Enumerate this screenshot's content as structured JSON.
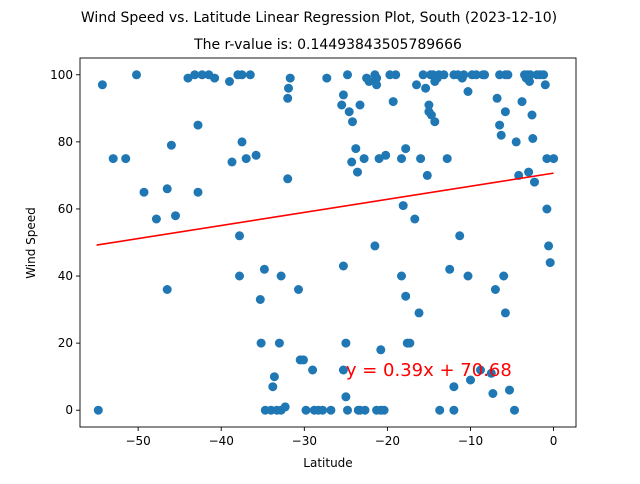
{
  "chart_data": {
    "type": "scatter",
    "title": "Wind Speed vs. Latitude Linear Regression Plot, South (2023-12-10)",
    "subtitle": "The r-value is: 0.14493843505789666",
    "xlabel": "Latitude",
    "ylabel": "Wind Speed",
    "xlim": [
      -57,
      2.7
    ],
    "ylim": [
      -5,
      105
    ],
    "xticks": [
      -50,
      -40,
      -30,
      -20,
      -10,
      0
    ],
    "yticks": [
      0,
      20,
      40,
      60,
      80,
      100
    ],
    "grid": false,
    "point_color": "#1f77b4",
    "line_color": "#ff0000",
    "annotation": {
      "text": "y = 0.39x + 70.68",
      "x": -25,
      "y": 12
    },
    "regression": {
      "slope": 0.39,
      "intercept": 70.68,
      "x_range": [
        -55,
        0
      ]
    },
    "points": [
      [
        -54.8,
        0
      ],
      [
        -54.3,
        97
      ],
      [
        -53,
        75
      ],
      [
        -51.5,
        75
      ],
      [
        -50.2,
        100
      ],
      [
        -49.3,
        65
      ],
      [
        -47.8,
        57
      ],
      [
        -46.5,
        66
      ],
      [
        -46.5,
        36
      ],
      [
        -46,
        79
      ],
      [
        -45.5,
        58
      ],
      [
        -44,
        99
      ],
      [
        -43.2,
        100
      ],
      [
        -42.8,
        65
      ],
      [
        -42.8,
        85
      ],
      [
        -42.3,
        100
      ],
      [
        -41.5,
        100
      ],
      [
        -40.8,
        99
      ],
      [
        -39,
        98
      ],
      [
        -38.7,
        74
      ],
      [
        -38,
        100
      ],
      [
        -37.8,
        52
      ],
      [
        -37.5,
        80
      ],
      [
        -37.8,
        40
      ],
      [
        -37.5,
        100
      ],
      [
        -37,
        75
      ],
      [
        -36.5,
        100
      ],
      [
        -35.8,
        76
      ],
      [
        -35.3,
        33
      ],
      [
        -35.2,
        20
      ],
      [
        -34.8,
        42
      ],
      [
        -34.7,
        0
      ],
      [
        -34,
        0
      ],
      [
        -33.8,
        7
      ],
      [
        -33.6,
        10
      ],
      [
        -33.3,
        0
      ],
      [
        -33,
        20
      ],
      [
        -32.8,
        0
      ],
      [
        -32.8,
        40
      ],
      [
        -32.3,
        1
      ],
      [
        -32,
        69
      ],
      [
        -32,
        93
      ],
      [
        -31.9,
        96
      ],
      [
        -31.7,
        99
      ],
      [
        -30.7,
        36
      ],
      [
        -30.5,
        15
      ],
      [
        -30.1,
        15
      ],
      [
        -29.8,
        0
      ],
      [
        -29,
        12
      ],
      [
        -28.8,
        0
      ],
      [
        -28.3,
        0
      ],
      [
        -27.8,
        0
      ],
      [
        -27.3,
        99
      ],
      [
        -26.8,
        0
      ],
      [
        -25.5,
        91
      ],
      [
        -25.3,
        12
      ],
      [
        -25.3,
        43
      ],
      [
        -25.3,
        94
      ],
      [
        -25,
        4
      ],
      [
        -25,
        20
      ],
      [
        -24.8,
        100
      ],
      [
        -24.8,
        0
      ],
      [
        -24.6,
        89
      ],
      [
        -24.3,
        74
      ],
      [
        -24.2,
        86
      ],
      [
        -23.8,
        78
      ],
      [
        -23.6,
        71
      ],
      [
        -23.5,
        0
      ],
      [
        -23.3,
        91
      ],
      [
        -23.3,
        0
      ],
      [
        -22.8,
        75
      ],
      [
        -22.7,
        0
      ],
      [
        -22.5,
        99
      ],
      [
        -22.2,
        98
      ],
      [
        -21.5,
        100
      ],
      [
        -21.5,
        49
      ],
      [
        -21.3,
        97
      ],
      [
        -21.3,
        99
      ],
      [
        -21.3,
        0
      ],
      [
        -21,
        75
      ],
      [
        -20.8,
        18
      ],
      [
        -20.8,
        0
      ],
      [
        -20.4,
        0
      ],
      [
        -20.2,
        76
      ],
      [
        -19.7,
        100
      ],
      [
        -19.3,
        92
      ],
      [
        -19,
        100
      ],
      [
        -18.3,
        75
      ],
      [
        -18.3,
        40
      ],
      [
        -18.1,
        61
      ],
      [
        -17.8,
        34
      ],
      [
        -17.8,
        78
      ],
      [
        -17.6,
        20
      ],
      [
        -17.3,
        20
      ],
      [
        -16.7,
        57
      ],
      [
        -16.5,
        97
      ],
      [
        -16.2,
        29
      ],
      [
        -16,
        75
      ],
      [
        -15.7,
        100
      ],
      [
        -15.4,
        96
      ],
      [
        -15.2,
        70
      ],
      [
        -15,
        89
      ],
      [
        -15,
        91
      ],
      [
        -14.8,
        100
      ],
      [
        -14.7,
        88
      ],
      [
        -14.5,
        100
      ],
      [
        -14.3,
        86
      ],
      [
        -14.3,
        98
      ],
      [
        -14,
        99
      ],
      [
        -13.8,
        100
      ],
      [
        -13.7,
        0
      ],
      [
        -13.2,
        100
      ],
      [
        -12.8,
        75
      ],
      [
        -12.5,
        42
      ],
      [
        -12,
        0
      ],
      [
        -12,
        7
      ],
      [
        -12,
        100
      ],
      [
        -11.5,
        100
      ],
      [
        -11.3,
        52
      ],
      [
        -11,
        99
      ],
      [
        -10.8,
        100
      ],
      [
        -10.3,
        40
      ],
      [
        -10.3,
        95
      ],
      [
        -10,
        9
      ],
      [
        -9.8,
        100
      ],
      [
        -9.3,
        100
      ],
      [
        -8.8,
        12
      ],
      [
        -8.5,
        100
      ],
      [
        -8.3,
        100
      ],
      [
        -7.5,
        11
      ],
      [
        -7.3,
        5
      ],
      [
        -7,
        36
      ],
      [
        -6.8,
        93
      ],
      [
        -6.5,
        100
      ],
      [
        -6.5,
        85
      ],
      [
        -6.3,
        82
      ],
      [
        -6,
        40
      ],
      [
        -5.8,
        100
      ],
      [
        -5.8,
        89
      ],
      [
        -5.8,
        29
      ],
      [
        -5.5,
        100
      ],
      [
        -5.3,
        6
      ],
      [
        -4.7,
        0
      ],
      [
        -4.5,
        80
      ],
      [
        -4.2,
        70
      ],
      [
        -3.8,
        92
      ],
      [
        -3.5,
        100
      ],
      [
        -3.3,
        99
      ],
      [
        -3.1,
        100
      ],
      [
        -3,
        71
      ],
      [
        -2.9,
        98
      ],
      [
        -2.8,
        100
      ],
      [
        -2.6,
        88
      ],
      [
        -2.5,
        81
      ],
      [
        -2.3,
        68
      ],
      [
        -2,
        100
      ],
      [
        -1.6,
        100
      ],
      [
        -1.2,
        100
      ],
      [
        -1,
        97
      ],
      [
        -0.8,
        60
      ],
      [
        -0.8,
        75
      ],
      [
        -0.6,
        49
      ],
      [
        -0.4,
        44
      ],
      [
        0,
        75
      ]
    ]
  }
}
